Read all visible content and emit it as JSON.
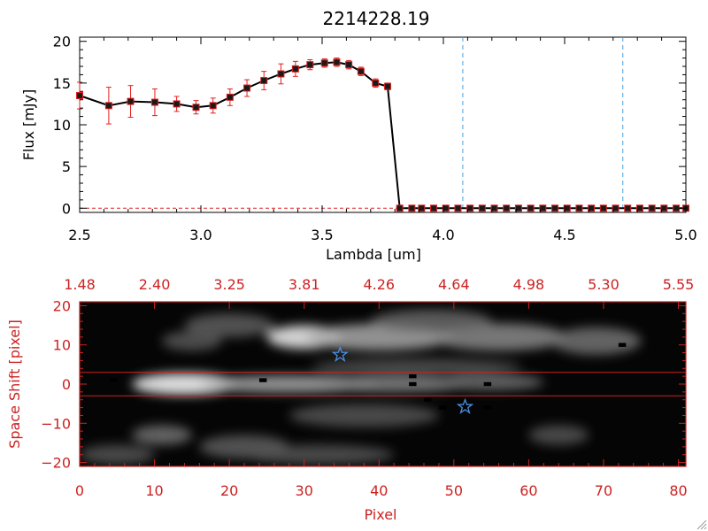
{
  "colors": {
    "axis_black": "#000000",
    "axis_red": "#cc2222",
    "marker_fill": "#1a1a1a",
    "error_bar": "#e02020",
    "dashed_line": "#4aa0e0",
    "star": "#4a8fe0",
    "image_bg": "#050505"
  },
  "chart_data": [
    {
      "type": "line",
      "title": "2214228.19",
      "xlabel": "Lambda [um]",
      "ylabel": "Flux [mJy]",
      "xlim": [
        2.5,
        5.0
      ],
      "ylim": [
        -0.5,
        20.5
      ],
      "xticks": [
        2.5,
        3.0,
        3.5,
        4.0,
        4.5,
        5.0
      ],
      "xtick_labels": [
        "2.5",
        "3.0",
        "3.5",
        "4.0",
        "4.5",
        "5.0"
      ],
      "yticks": [
        0,
        5,
        10,
        15,
        20
      ],
      "ytick_labels": [
        "0",
        "5",
        "10",
        "15",
        "20"
      ],
      "series": [
        {
          "x": [
            2.5,
            2.62,
            2.71,
            2.81,
            2.9,
            2.98,
            3.05,
            3.12,
            3.19,
            3.26,
            3.33,
            3.39,
            3.45,
            3.51,
            3.56,
            3.61,
            3.66,
            3.72,
            3.77,
            3.82,
            3.87,
            3.91,
            3.96,
            4.01,
            4.06,
            4.11,
            4.16,
            4.21,
            4.26,
            4.31,
            4.36,
            4.41,
            4.46,
            4.51,
            4.56,
            4.61,
            4.66,
            4.71,
            4.76,
            4.81,
            4.86,
            4.91,
            4.96,
            5.0
          ],
          "y": [
            13.5,
            12.3,
            12.8,
            12.7,
            12.5,
            12.1,
            12.3,
            13.3,
            14.4,
            15.3,
            16.1,
            16.7,
            17.2,
            17.4,
            17.5,
            17.2,
            16.4,
            15.0,
            14.6,
            0,
            0,
            0,
            0,
            0,
            0,
            0,
            0,
            0,
            0,
            0,
            0,
            0,
            0,
            0,
            0,
            0,
            0,
            0,
            0,
            0,
            0,
            0,
            0,
            0
          ],
          "yerr": [
            1.6,
            2.2,
            1.9,
            1.6,
            0.9,
            0.8,
            0.9,
            1.0,
            1.0,
            1.1,
            1.2,
            0.9,
            0.6,
            0.5,
            0.5,
            0.5,
            0.5,
            0.5,
            0.4,
            0,
            0,
            0,
            0,
            0,
            0,
            0,
            0,
            0,
            0,
            0,
            0,
            0,
            0,
            0,
            0,
            0,
            0,
            0,
            0,
            0,
            0,
            0,
            0,
            0
          ]
        }
      ],
      "vlines": [
        4.08,
        4.74
      ],
      "hline_red_dashed": 0,
      "grid": false
    },
    {
      "type": "heatmap",
      "xlabel": "Pixel",
      "ylabel": "Space Shift [pixel]",
      "xlim": [
        0,
        81
      ],
      "ylim": [
        -21,
        21
      ],
      "xticks": [
        0,
        10,
        20,
        30,
        40,
        50,
        60,
        70,
        80
      ],
      "xtick_labels": [
        "0",
        "10",
        "20",
        "30",
        "40",
        "50",
        "60",
        "70",
        "80"
      ],
      "yticks": [
        -20,
        -10,
        0,
        10,
        20
      ],
      "ytick_labels": [
        "−20",
        "−10",
        "0",
        "10",
        "20"
      ],
      "top_axis_ticks": [
        0,
        10,
        20,
        30,
        40,
        50,
        60,
        70,
        80
      ],
      "top_axis_labels": [
        "1.48",
        "2.40",
        "3.25",
        "3.81",
        "4.26",
        "4.64",
        "4.98",
        "5.30",
        "5.55"
      ],
      "aperture_y": [
        3,
        -3
      ],
      "stars": [
        {
          "x": 34.8,
          "y": 7.5
        },
        {
          "x": 51.5,
          "y": -5.8
        }
      ],
      "blobs": [
        {
          "x": 14,
          "y": 0,
          "w": 7,
          "h": 2.8,
          "level": 1.0
        },
        {
          "x": 28,
          "y": 0,
          "w": 12,
          "h": 2.2,
          "level": 0.6
        },
        {
          "x": 42,
          "y": 0,
          "w": 10,
          "h": 2.0,
          "level": 0.45
        },
        {
          "x": 55,
          "y": 0.5,
          "w": 7,
          "h": 2.0,
          "level": 0.35
        },
        {
          "x": 30,
          "y": 12,
          "w": 5,
          "h": 3.0,
          "level": 0.95
        },
        {
          "x": 40,
          "y": 12,
          "w": 10,
          "h": 3.4,
          "level": 0.6
        },
        {
          "x": 56,
          "y": 12,
          "w": 9,
          "h": 3.5,
          "level": 0.45
        },
        {
          "x": 69,
          "y": 11,
          "w": 6,
          "h": 3.5,
          "level": 0.35
        },
        {
          "x": 47,
          "y": 16,
          "w": 8,
          "h": 3,
          "level": 0.3
        },
        {
          "x": 20,
          "y": 15,
          "w": 6,
          "h": 3,
          "level": 0.25
        },
        {
          "x": 11,
          "y": -13,
          "w": 4,
          "h": 2.5,
          "level": 0.35
        },
        {
          "x": 22,
          "y": -16,
          "w": 6,
          "h": 3,
          "level": 0.25
        },
        {
          "x": 15,
          "y": 11,
          "w": 4,
          "h": 2.5,
          "level": 0.22
        },
        {
          "x": 38,
          "y": -8,
          "w": 10,
          "h": 3,
          "level": 0.2
        },
        {
          "x": 5,
          "y": -18,
          "w": 5,
          "h": 2.5,
          "level": 0.2
        },
        {
          "x": 32,
          "y": -18,
          "w": 10,
          "h": 2.5,
          "level": 0.2
        },
        {
          "x": 64,
          "y": -13,
          "w": 4,
          "h": 2.5,
          "level": 0.2
        },
        {
          "x": 45,
          "y": 4.5,
          "w": 14,
          "h": 2.0,
          "level": 0.2
        }
      ],
      "dark_pixels": [
        {
          "x": 24.5,
          "y": 1
        },
        {
          "x": 44.5,
          "y": 2
        },
        {
          "x": 44.5,
          "y": 0
        },
        {
          "x": 46.5,
          "y": -4
        },
        {
          "x": 48.5,
          "y": -6
        },
        {
          "x": 54.5,
          "y": 0
        },
        {
          "x": 54.5,
          "y": -6
        },
        {
          "x": 72.5,
          "y": 10
        },
        {
          "x": 4.5,
          "y": 1
        }
      ]
    }
  ]
}
